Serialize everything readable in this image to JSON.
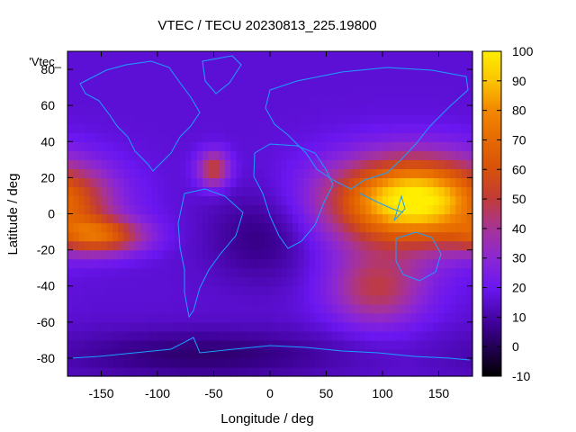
{
  "chart_data": {
    "type": "heatmap",
    "title": "VTEC / TECU 20230813_225.19800",
    "xlabel": "Longitude / deg",
    "ylabel": "Latitude / deg",
    "key_label": "'Vtec_",
    "xlim": [
      -180,
      180
    ],
    "ylim": [
      -90,
      90
    ],
    "x_ticks": [
      -150,
      -100,
      -50,
      0,
      50,
      100,
      150
    ],
    "y_ticks": [
      -80,
      -60,
      -40,
      -20,
      0,
      20,
      40,
      60,
      80
    ],
    "colorbar": {
      "range": [
        -10,
        100
      ],
      "ticks": [
        -10,
        0,
        10,
        20,
        30,
        40,
        50,
        60,
        70,
        80,
        90,
        100
      ],
      "palette": "black-purple-red-orange-yellow"
    },
    "features": [
      {
        "name": "equatorial anomaly Asia/Pacific",
        "lon": 130,
        "lat": 8,
        "peak": 92
      },
      {
        "name": "equatorial anomaly central Pacific",
        "lon": -150,
        "lat": -12,
        "peak": 60
      },
      {
        "name": "southern Indian Ocean enhancement",
        "lon": 95,
        "lat": -42,
        "peak": 46
      },
      {
        "name": "Caribbean enhancement",
        "lon": -50,
        "lat": 25,
        "peak": 52
      },
      {
        "name": "South Atlantic depletion",
        "lon": -5,
        "lat": -12,
        "peak": 4
      },
      {
        "name": "Antarctic depletion",
        "lon": -60,
        "lat": -78,
        "peak": 3
      }
    ],
    "background_vtec": 16
  }
}
